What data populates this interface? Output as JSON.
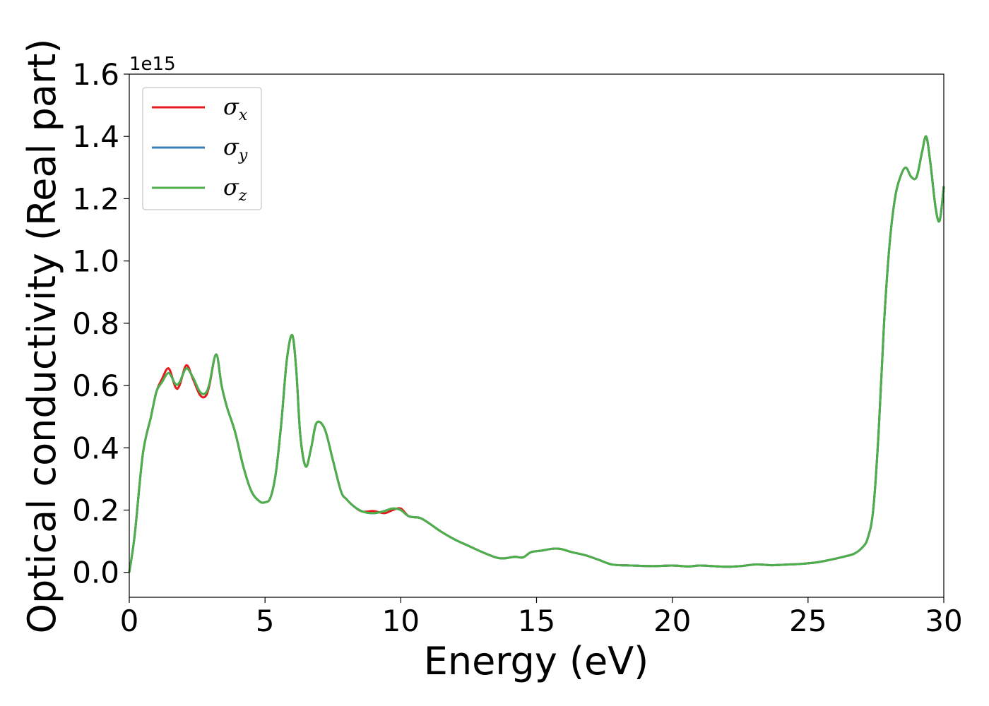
{
  "chart_data": {
    "type": "line",
    "xlabel": "Energy (eV)",
    "ylabel": "Optical conductivity (Real part)",
    "y_offset_label": "1e15",
    "xlim": [
      0,
      30
    ],
    "ylim": [
      -0.08,
      1.6
    ],
    "xticks": [
      0,
      5,
      10,
      15,
      20,
      25,
      30
    ],
    "xtick_labels": [
      "0",
      "5",
      "10",
      "15",
      "20",
      "25",
      "30"
    ],
    "yticks": [
      0.0,
      0.2,
      0.4,
      0.6,
      0.8,
      1.0,
      1.2,
      1.4,
      1.6
    ],
    "ytick_labels": [
      "0.0",
      "0.2",
      "0.4",
      "0.6",
      "0.8",
      "1.0",
      "1.2",
      "1.4",
      "1.6"
    ],
    "grid": false,
    "legend_position": "top-left",
    "series": [
      {
        "name": "σ",
        "subscript": "x",
        "color": "#e41a1c",
        "x": [
          0,
          0.2,
          0.5,
          0.8,
          1.0,
          1.2,
          1.45,
          1.7,
          1.85,
          2.1,
          2.35,
          2.6,
          2.8,
          2.95,
          3.2,
          3.4,
          3.6,
          3.9,
          4.2,
          4.5,
          4.8,
          5.0,
          5.2,
          5.4,
          5.6,
          5.8,
          6.0,
          6.15,
          6.3,
          6.5,
          6.7,
          6.9,
          7.2,
          7.5,
          7.8,
          8.0,
          8.3,
          8.6,
          9.0,
          9.4,
          9.7,
          10.0,
          10.3,
          10.7,
          11.0,
          11.5,
          12.0,
          12.5,
          13.0,
          13.5,
          13.8,
          14.2,
          14.5,
          14.8,
          15.2,
          15.6,
          15.9,
          16.3,
          16.8,
          17.3,
          17.8,
          18.5,
          19.3,
          20.0,
          20.6,
          21.0,
          21.5,
          22.0,
          22.5,
          23.0,
          23.3,
          23.7,
          24.2,
          24.7,
          25.3,
          25.8,
          26.3,
          26.7,
          27.0,
          27.2,
          27.4,
          27.6,
          27.8,
          28.0,
          28.2,
          28.4,
          28.6,
          28.8,
          29.0,
          29.2,
          29.35,
          29.5,
          29.7,
          29.85,
          30.0
        ],
        "y": [
          0.0,
          0.12,
          0.38,
          0.5,
          0.58,
          0.62,
          0.655,
          0.595,
          0.6,
          0.665,
          0.62,
          0.57,
          0.565,
          0.6,
          0.7,
          0.6,
          0.53,
          0.45,
          0.34,
          0.26,
          0.228,
          0.225,
          0.24,
          0.32,
          0.48,
          0.68,
          0.762,
          0.65,
          0.44,
          0.34,
          0.4,
          0.48,
          0.46,
          0.36,
          0.26,
          0.235,
          0.21,
          0.195,
          0.197,
          0.19,
          0.2,
          0.205,
          0.18,
          0.175,
          0.16,
          0.13,
          0.105,
          0.085,
          0.065,
          0.048,
          0.045,
          0.05,
          0.048,
          0.065,
          0.07,
          0.076,
          0.075,
          0.065,
          0.055,
          0.04,
          0.025,
          0.022,
          0.02,
          0.022,
          0.019,
          0.022,
          0.02,
          0.018,
          0.02,
          0.025,
          0.025,
          0.023,
          0.025,
          0.027,
          0.032,
          0.04,
          0.05,
          0.06,
          0.08,
          0.11,
          0.2,
          0.45,
          0.8,
          1.05,
          1.2,
          1.27,
          1.3,
          1.27,
          1.27,
          1.35,
          1.4,
          1.32,
          1.17,
          1.13,
          1.24
        ]
      },
      {
        "name": "σ",
        "subscript": "y",
        "color": "#377eb8",
        "x": [
          0,
          0.2,
          0.5,
          0.8,
          1.0,
          1.2,
          1.45,
          1.7,
          1.85,
          2.1,
          2.35,
          2.6,
          2.8,
          2.95,
          3.2,
          3.4,
          3.6,
          3.9,
          4.2,
          4.5,
          4.8,
          5.0,
          5.2,
          5.4,
          5.6,
          5.8,
          6.0,
          6.15,
          6.3,
          6.5,
          6.7,
          6.9,
          7.2,
          7.5,
          7.8,
          8.0,
          8.3,
          8.6,
          9.0,
          9.4,
          9.7,
          10.0,
          10.3,
          10.7,
          11.0,
          11.5,
          12.0,
          12.5,
          13.0,
          13.5,
          13.8,
          14.2,
          14.5,
          14.8,
          15.2,
          15.6,
          15.9,
          16.3,
          16.8,
          17.3,
          17.8,
          18.5,
          19.3,
          20.0,
          20.6,
          21.0,
          21.5,
          22.0,
          22.5,
          23.0,
          23.3,
          23.7,
          24.2,
          24.7,
          25.3,
          25.8,
          26.3,
          26.7,
          27.0,
          27.2,
          27.4,
          27.6,
          27.8,
          28.0,
          28.2,
          28.4,
          28.6,
          28.8,
          29.0,
          29.2,
          29.35,
          29.5,
          29.7,
          29.85,
          30.0
        ],
        "y": [
          0.0,
          0.12,
          0.38,
          0.5,
          0.58,
          0.61,
          0.64,
          0.605,
          0.61,
          0.655,
          0.625,
          0.58,
          0.575,
          0.605,
          0.7,
          0.6,
          0.53,
          0.45,
          0.34,
          0.26,
          0.228,
          0.225,
          0.24,
          0.32,
          0.48,
          0.68,
          0.762,
          0.65,
          0.44,
          0.34,
          0.4,
          0.48,
          0.46,
          0.36,
          0.26,
          0.235,
          0.21,
          0.195,
          0.19,
          0.197,
          0.205,
          0.2,
          0.18,
          0.175,
          0.16,
          0.13,
          0.105,
          0.085,
          0.065,
          0.048,
          0.045,
          0.05,
          0.048,
          0.065,
          0.07,
          0.076,
          0.075,
          0.065,
          0.055,
          0.04,
          0.025,
          0.022,
          0.02,
          0.022,
          0.019,
          0.022,
          0.02,
          0.018,
          0.02,
          0.025,
          0.025,
          0.023,
          0.025,
          0.027,
          0.032,
          0.04,
          0.05,
          0.06,
          0.08,
          0.11,
          0.2,
          0.45,
          0.8,
          1.05,
          1.2,
          1.27,
          1.3,
          1.27,
          1.27,
          1.35,
          1.4,
          1.32,
          1.17,
          1.13,
          1.24
        ]
      },
      {
        "name": "σ",
        "subscript": "z",
        "color": "#4daf4a",
        "x": [
          0,
          0.2,
          0.5,
          0.8,
          1.0,
          1.2,
          1.45,
          1.7,
          1.85,
          2.1,
          2.35,
          2.6,
          2.8,
          2.95,
          3.2,
          3.4,
          3.6,
          3.9,
          4.2,
          4.5,
          4.8,
          5.0,
          5.2,
          5.4,
          5.6,
          5.8,
          6.0,
          6.15,
          6.3,
          6.5,
          6.7,
          6.9,
          7.2,
          7.5,
          7.8,
          8.0,
          8.3,
          8.6,
          9.0,
          9.4,
          9.7,
          10.0,
          10.3,
          10.7,
          11.0,
          11.5,
          12.0,
          12.5,
          13.0,
          13.5,
          13.8,
          14.2,
          14.5,
          14.8,
          15.2,
          15.6,
          15.9,
          16.3,
          16.8,
          17.3,
          17.8,
          18.5,
          19.3,
          20.0,
          20.6,
          21.0,
          21.5,
          22.0,
          22.5,
          23.0,
          23.3,
          23.7,
          24.2,
          24.7,
          25.3,
          25.8,
          26.3,
          26.7,
          27.0,
          27.2,
          27.4,
          27.6,
          27.8,
          28.0,
          28.2,
          28.4,
          28.6,
          28.8,
          29.0,
          29.2,
          29.35,
          29.5,
          29.7,
          29.85,
          30.0
        ],
        "y": [
          0.0,
          0.12,
          0.38,
          0.5,
          0.58,
          0.61,
          0.64,
          0.605,
          0.61,
          0.655,
          0.625,
          0.58,
          0.575,
          0.605,
          0.7,
          0.6,
          0.53,
          0.45,
          0.34,
          0.26,
          0.228,
          0.225,
          0.24,
          0.32,
          0.48,
          0.68,
          0.762,
          0.65,
          0.44,
          0.34,
          0.4,
          0.48,
          0.46,
          0.36,
          0.26,
          0.235,
          0.21,
          0.195,
          0.19,
          0.197,
          0.205,
          0.2,
          0.18,
          0.175,
          0.16,
          0.13,
          0.105,
          0.085,
          0.065,
          0.048,
          0.045,
          0.05,
          0.048,
          0.065,
          0.07,
          0.076,
          0.075,
          0.065,
          0.055,
          0.04,
          0.025,
          0.022,
          0.02,
          0.022,
          0.019,
          0.022,
          0.02,
          0.018,
          0.02,
          0.025,
          0.025,
          0.023,
          0.025,
          0.027,
          0.032,
          0.04,
          0.05,
          0.06,
          0.08,
          0.11,
          0.2,
          0.45,
          0.8,
          1.05,
          1.2,
          1.27,
          1.3,
          1.27,
          1.27,
          1.35,
          1.4,
          1.32,
          1.17,
          1.13,
          1.24
        ]
      }
    ]
  }
}
